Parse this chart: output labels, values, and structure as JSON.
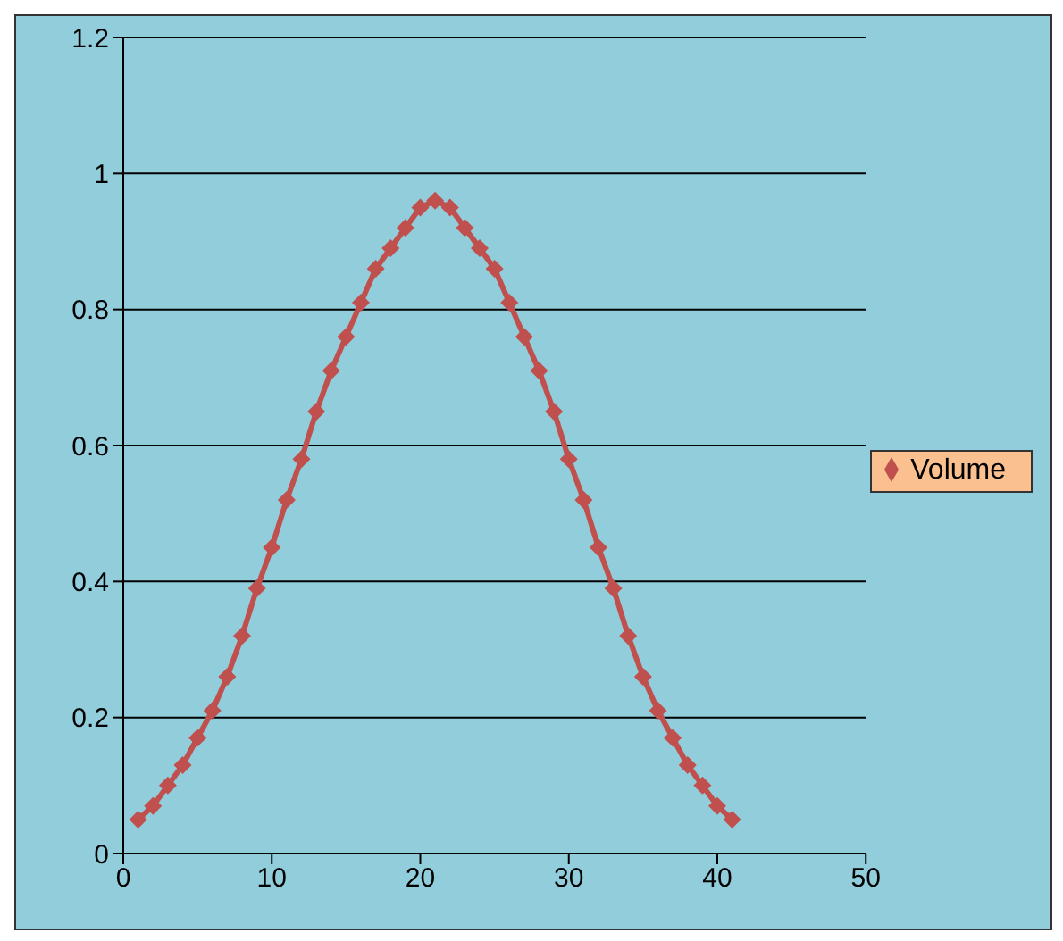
{
  "chart_data": {
    "type": "line",
    "x": [
      1,
      2,
      3,
      4,
      5,
      6,
      7,
      8,
      9,
      10,
      11,
      12,
      13,
      14,
      15,
      16,
      17,
      18,
      19,
      20,
      21,
      22,
      23,
      24,
      25,
      26,
      27,
      28,
      29,
      30,
      31,
      32,
      33,
      34,
      35,
      36,
      37,
      38,
      39,
      40,
      41
    ],
    "series": [
      {
        "name": "Volume",
        "color": "#c0504d",
        "values": [
          0.05,
          0.07,
          0.1,
          0.13,
          0.17,
          0.21,
          0.26,
          0.32,
          0.39,
          0.45,
          0.52,
          0.58,
          0.65,
          0.71,
          0.76,
          0.81,
          0.86,
          0.89,
          0.92,
          0.95,
          0.96,
          0.95,
          0.92,
          0.89,
          0.86,
          0.81,
          0.76,
          0.71,
          0.65,
          0.58,
          0.52,
          0.45,
          0.39,
          0.32,
          0.26,
          0.21,
          0.17,
          0.13,
          0.1,
          0.07,
          0.05
        ]
      }
    ],
    "xlim": [
      0,
      50
    ],
    "xticks": [
      0,
      10,
      20,
      30,
      40,
      50
    ],
    "ylim": [
      0,
      1.2
    ],
    "yticks": [
      0,
      0.2,
      0.4,
      0.6,
      0.8,
      1,
      1.2
    ],
    "grid": "y",
    "legend": "right",
    "marker": "diamond",
    "line_style": "solid"
  }
}
